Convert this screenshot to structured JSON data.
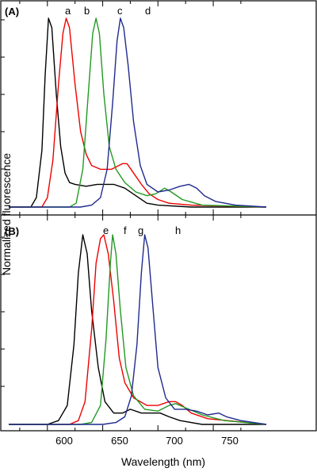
{
  "chart_data": {
    "type": "line",
    "xlabel": "Wavelength (nm)",
    "ylabel": "Normalized fluorescence",
    "xlim": [
      565,
      798
    ],
    "ylim": [
      0,
      1.1
    ],
    "x_ticks": [
      600,
      650,
      700,
      750
    ],
    "y_ticks_labelled": false,
    "grid": false,
    "legend": "none",
    "panels": [
      {
        "tag": "(A)",
        "series": [
          {
            "label": "a",
            "color": "#000000",
            "points": [
              [
                565,
                0.0
              ],
              [
                585,
                0.0
              ],
              [
                590,
                0.05
              ],
              [
                595,
                0.3
              ],
              [
                598,
                0.7
              ],
              [
                601,
                1.0
              ],
              [
                604,
                0.95
              ],
              [
                608,
                0.6
              ],
              [
                612,
                0.32
              ],
              [
                616,
                0.18
              ],
              [
                620,
                0.13
              ],
              [
                625,
                0.12
              ],
              [
                635,
                0.11
              ],
              [
                645,
                0.12
              ],
              [
                660,
                0.12
              ],
              [
                670,
                0.1
              ],
              [
                680,
                0.06
              ],
              [
                690,
                0.02
              ],
              [
                700,
                0.01
              ],
              [
                730,
                0.0
              ],
              [
                798,
                0.0
              ]
            ]
          },
          {
            "label": "b",
            "color": "#ee0000",
            "points": [
              [
                565,
                0.0
              ],
              [
                595,
                0.0
              ],
              [
                600,
                0.05
              ],
              [
                605,
                0.25
              ],
              [
                610,
                0.65
              ],
              [
                614,
                0.92
              ],
              [
                617,
                1.0
              ],
              [
                620,
                0.95
              ],
              [
                625,
                0.65
              ],
              [
                630,
                0.4
              ],
              [
                635,
                0.28
              ],
              [
                640,
                0.22
              ],
              [
                648,
                0.2
              ],
              [
                658,
                0.2
              ],
              [
                668,
                0.23
              ],
              [
                672,
                0.23
              ],
              [
                678,
                0.18
              ],
              [
                685,
                0.12
              ],
              [
                692,
                0.07
              ],
              [
                700,
                0.04
              ],
              [
                710,
                0.02
              ],
              [
                730,
                0.01
              ],
              [
                798,
                0.0
              ]
            ]
          },
          {
            "label": "c",
            "color": "#229922",
            "points": [
              [
                565,
                0.0
              ],
              [
                620,
                0.0
              ],
              [
                626,
                0.02
              ],
              [
                632,
                0.2
              ],
              [
                637,
                0.6
              ],
              [
                641,
                0.92
              ],
              [
                644,
                1.0
              ],
              [
                647,
                0.92
              ],
              [
                651,
                0.6
              ],
              [
                656,
                0.32
              ],
              [
                662,
                0.2
              ],
              [
                670,
                0.13
              ],
              [
                680,
                0.08
              ],
              [
                690,
                0.06
              ],
              [
                698,
                0.07
              ],
              [
                706,
                0.1
              ],
              [
                712,
                0.08
              ],
              [
                722,
                0.04
              ],
              [
                740,
                0.01
              ],
              [
                798,
                0.0
              ]
            ]
          },
          {
            "label": "d",
            "color": "#1f2a8c",
            "points": [
              [
                565,
                0.0
              ],
              [
                630,
                0.0
              ],
              [
                640,
                0.01
              ],
              [
                648,
                0.05
              ],
              [
                654,
                0.2
              ],
              [
                659,
                0.55
              ],
              [
                663,
                0.88
              ],
              [
                666,
                1.0
              ],
              [
                669,
                0.95
              ],
              [
                673,
                0.75
              ],
              [
                678,
                0.45
              ],
              [
                684,
                0.22
              ],
              [
                690,
                0.12
              ],
              [
                700,
                0.08
              ],
              [
                710,
                0.09
              ],
              [
                720,
                0.11
              ],
              [
                728,
                0.12
              ],
              [
                735,
                0.1
              ],
              [
                742,
                0.06
              ],
              [
                752,
                0.03
              ],
              [
                770,
                0.01
              ],
              [
                798,
                0.0
              ]
            ]
          }
        ]
      },
      {
        "tag": "(B)",
        "series": [
          {
            "label": "e",
            "color": "#000000",
            "points": [
              [
                565,
                0.0
              ],
              [
                600,
                0.0
              ],
              [
                610,
                0.02
              ],
              [
                618,
                0.1
              ],
              [
                624,
                0.42
              ],
              [
                628,
                0.8
              ],
              [
                632,
                1.0
              ],
              [
                636,
                0.9
              ],
              [
                640,
                0.6
              ],
              [
                646,
                0.3
              ],
              [
                652,
                0.12
              ],
              [
                660,
                0.06
              ],
              [
                668,
                0.06
              ],
              [
                675,
                0.08
              ],
              [
                685,
                0.06
              ],
              [
                695,
                0.06
              ],
              [
                702,
                0.06
              ],
              [
                710,
                0.04
              ],
              [
                720,
                0.02
              ],
              [
                740,
                0.0
              ],
              [
                798,
                0.0
              ]
            ]
          },
          {
            "label": "f",
            "color": "#ee0000",
            "points": [
              [
                565,
                0.0
              ],
              [
                620,
                0.0
              ],
              [
                628,
                0.02
              ],
              [
                634,
                0.12
              ],
              [
                640,
                0.5
              ],
              [
                644,
                0.85
              ],
              [
                648,
                0.98
              ],
              [
                651,
                1.0
              ],
              [
                655,
                0.9
              ],
              [
                660,
                0.65
              ],
              [
                665,
                0.35
              ],
              [
                670,
                0.22
              ],
              [
                678,
                0.14
              ],
              [
                690,
                0.1
              ],
              [
                700,
                0.1
              ],
              [
                710,
                0.12
              ],
              [
                716,
                0.12
              ],
              [
                722,
                0.1
              ],
              [
                730,
                0.06
              ],
              [
                745,
                0.03
              ],
              [
                798,
                0.0
              ]
            ]
          },
          {
            "label": "g",
            "color": "#229922",
            "points": [
              [
                565,
                0.0
              ],
              [
                630,
                0.0
              ],
              [
                640,
                0.01
              ],
              [
                648,
                0.1
              ],
              [
                653,
                0.45
              ],
              [
                657,
                0.85
              ],
              [
                659,
                1.0
              ],
              [
                662,
                0.9
              ],
              [
                666,
                0.6
              ],
              [
                671,
                0.3
              ],
              [
                678,
                0.15
              ],
              [
                688,
                0.08
              ],
              [
                700,
                0.07
              ],
              [
                710,
                0.1
              ],
              [
                716,
                0.11
              ],
              [
                724,
                0.09
              ],
              [
                740,
                0.05
              ],
              [
                760,
                0.02
              ],
              [
                798,
                0.0
              ]
            ]
          },
          {
            "label": "h",
            "color": "#1f2a8c",
            "points": [
              [
                565,
                0.0
              ],
              [
                650,
                0.0
              ],
              [
                662,
                0.01
              ],
              [
                670,
                0.04
              ],
              [
                676,
                0.15
              ],
              [
                681,
                0.42
              ],
              [
                685,
                0.8
              ],
              [
                688,
                1.0
              ],
              [
                691,
                0.93
              ],
              [
                695,
                0.65
              ],
              [
                700,
                0.3
              ],
              [
                707,
                0.14
              ],
              [
                715,
                0.08
              ],
              [
                725,
                0.08
              ],
              [
                735,
                0.07
              ],
              [
                745,
                0.05
              ],
              [
                755,
                0.06
              ],
              [
                762,
                0.04
              ],
              [
                775,
                0.02
              ],
              [
                798,
                0.0
              ]
            ]
          }
        ]
      }
    ],
    "peak_labels": [
      "a",
      "b",
      "c",
      "d",
      "e",
      "f",
      "g",
      "h"
    ]
  }
}
